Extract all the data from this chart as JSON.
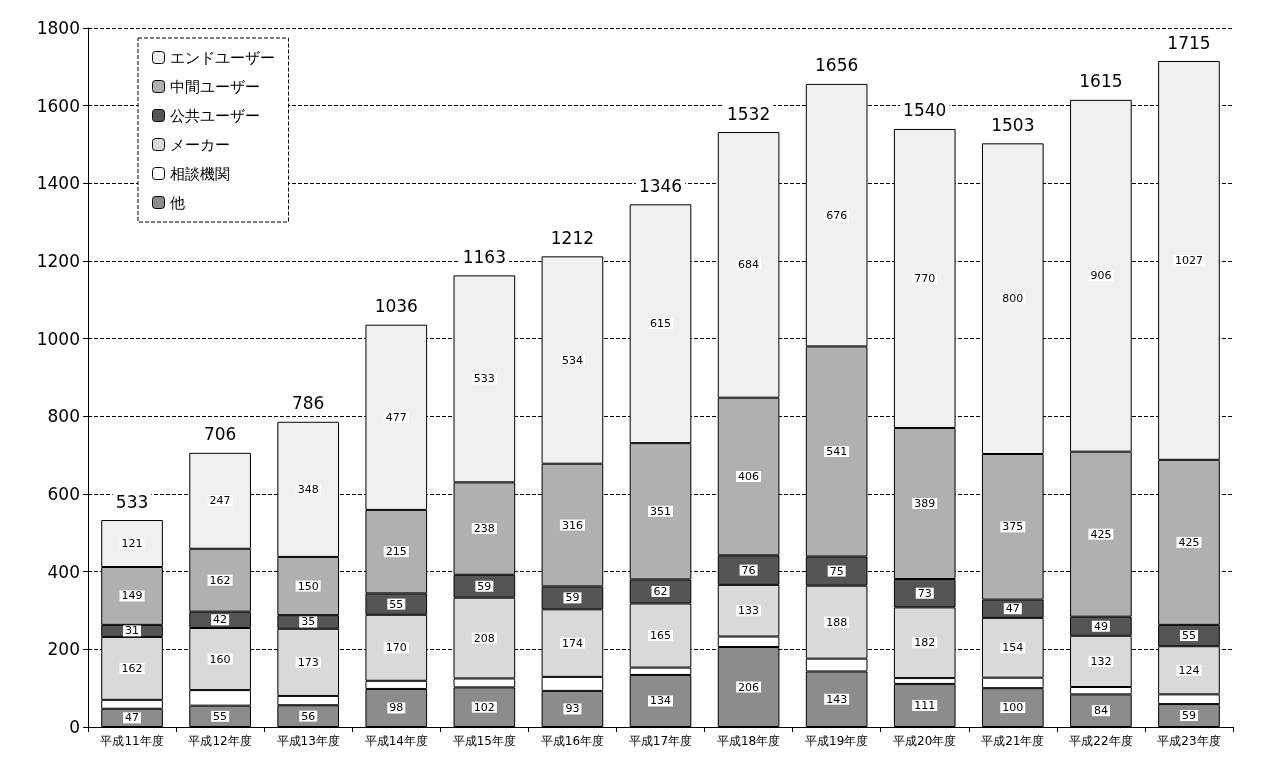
{
  "chart_data": {
    "type": "bar",
    "stacked": true,
    "categories": [
      "平成11年度",
      "平成12年度",
      "平成13年度",
      "平成14年度",
      "平成15年度",
      "平成16年度",
      "平成17年度",
      "平成18年度",
      "平成19年度",
      "平成20年度",
      "平成21年度",
      "平成22年度",
      "平成23年度"
    ],
    "series": [
      {
        "name": "他",
        "color": "#8c8c8c",
        "values": [
          47,
          55,
          56,
          98,
          102,
          93,
          134,
          206,
          143,
          111,
          100,
          84,
          59
        ],
        "value_labels": [
          "47",
          "55",
          "56",
          "98",
          "102",
          "93",
          "134",
          "206",
          "143",
          "111",
          "100",
          "84",
          "59"
        ]
      },
      {
        "name": "相談機関",
        "color": "#ffffff",
        "values": [
          23,
          40,
          24,
          21,
          23,
          36,
          19,
          27,
          33,
          15,
          27,
          19,
          25
        ]
      },
      {
        "name": "メーカー",
        "color": "#d9d9d9",
        "values": [
          162,
          160,
          173,
          170,
          208,
          174,
          165,
          133,
          188,
          182,
          154,
          132,
          124
        ],
        "value_labels": [
          "162",
          "160",
          "173",
          "170",
          "208",
          "174",
          "165",
          "133",
          "188",
          "182",
          "154",
          "132",
          "124"
        ]
      },
      {
        "name": "公共ユーザー",
        "color": "#555555",
        "values": [
          31,
          42,
          35,
          55,
          59,
          59,
          62,
          76,
          75,
          73,
          47,
          49,
          55
        ],
        "value_labels": [
          "31",
          "42",
          "35",
          "55",
          "59",
          "59",
          "62",
          "76",
          "75",
          "73",
          "47",
          "49",
          "55"
        ]
      },
      {
        "name": "中間ユーザー",
        "color": "#b0b0b0",
        "values": [
          149,
          162,
          150,
          215,
          238,
          316,
          351,
          406,
          541,
          389,
          375,
          425,
          425
        ],
        "value_labels": [
          "149",
          "162",
          "150",
          "215",
          "238",
          "316",
          "351",
          "406",
          "541",
          "389",
          "375",
          "425",
          "425"
        ]
      },
      {
        "name": "エンドユーザー",
        "color": "#f0f0f0",
        "values": [
          121,
          247,
          348,
          477,
          533,
          534,
          615,
          684,
          676,
          770,
          800,
          906,
          1027
        ],
        "value_labels": [
          "121",
          "247",
          "348",
          "477",
          "533",
          "534",
          "615",
          "684",
          "676",
          "770",
          "800",
          "906",
          "1027"
        ]
      }
    ],
    "totals": [
      "533",
      "706",
      "786",
      "1036",
      "1163",
      "1212",
      "1346",
      "1532",
      "1656",
      "1540",
      "1503",
      "1615",
      "1715"
    ],
    "ylim": [
      0,
      1800
    ],
    "yticks": [
      0,
      200,
      400,
      600,
      800,
      1000,
      1200,
      1400,
      1600,
      1800
    ],
    "grid": "y",
    "legend": "top left"
  }
}
